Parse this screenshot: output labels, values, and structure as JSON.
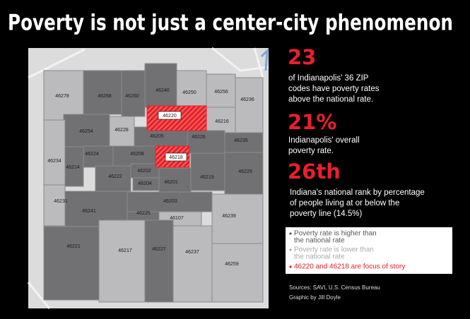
{
  "title": "Poverty is not just a center-city phenomenon",
  "stats": [
    {
      "figure": "23",
      "lines": [
        "of Indianapolis' 36 ZIP",
        "codes have poverty rates",
        "above the national rate."
      ]
    },
    {
      "figure": "21%",
      "lines": [
        "Indianapolis' overall",
        "poverty rate."
      ]
    },
    {
      "figure": "26th",
      "lines": [
        "Indiana's national rank by percentage",
        "of people living at or below the",
        "poverty line (14.5%)"
      ]
    }
  ],
  "legend": [
    {
      "lines": [
        "Poverty rate is higher than",
        "the national rate"
      ]
    },
    {
      "lines": [
        "Poverty rate is lower than",
        "the national rate"
      ]
    },
    {
      "lines": [
        "46220 and 46218 are focus of story"
      ]
    }
  ],
  "credits": [
    "Sources: SAVI, U.S. Census Bureau",
    "Graphic by Jill Doyle"
  ],
  "zips": [
    "46278",
    "46268",
    "46260",
    "46240",
    "46250",
    "46256",
    "46236",
    "46220",
    "46216",
    "46254",
    "46228",
    "46205",
    "46226",
    "46235",
    "46224",
    "46214",
    "46234",
    "46208",
    "46218",
    "46202",
    "46222",
    "46201",
    "46219",
    "46229",
    "46204",
    "46231",
    "46241",
    "46203",
    "46225",
    "46239",
    "46107",
    "46221",
    "46217",
    "46227",
    "46237",
    "46259"
  ]
}
